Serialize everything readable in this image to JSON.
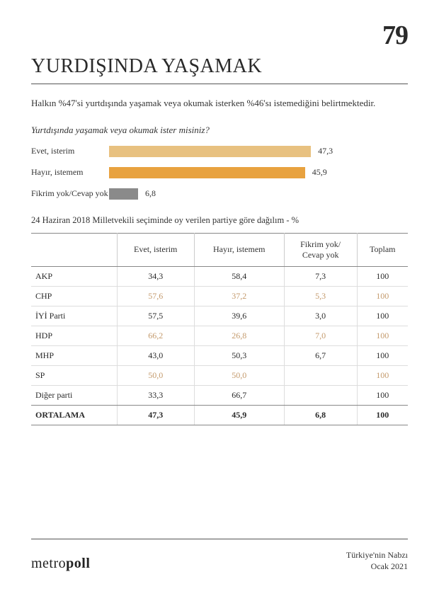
{
  "page_number": "79",
  "title": "YURDIŞINDA YAŞAMAK",
  "lede": "Halkın %47'si yurtdışında yaşamak veya okumak isterken %46'sı istemediğini belirtmektedir.",
  "chart": {
    "question": "Yurtdışında yaşamak veya okumak ister misiniz?",
    "max": 70,
    "bars": [
      {
        "label": "Evet, isterim",
        "value": "47,3",
        "pct": 47.3,
        "color": "#e8c180"
      },
      {
        "label": "Hayır, istemem",
        "value": "45,9",
        "pct": 45.9,
        "color": "#e8a23f"
      },
      {
        "label": "Fikrim yok/Cevap yok",
        "value": "6,8",
        "pct": 6.8,
        "color": "#8a8a8a"
      }
    ]
  },
  "table": {
    "caption": "24 Haziran 2018 Milletvekili seçiminde oy verilen partiye göre dağılım - %",
    "columns": [
      "",
      "Evet, isterim",
      "Hayır, istemem",
      "Fikrim yok/\nCevap yok",
      "Toplam"
    ],
    "rows": [
      {
        "cells": [
          "AKP",
          "34,3",
          "58,4",
          "7,3",
          "100"
        ],
        "muted": false
      },
      {
        "cells": [
          "CHP",
          "57,6",
          "37,2",
          "5,3",
          "100"
        ],
        "muted": true
      },
      {
        "cells": [
          "İYİ Parti",
          "57,5",
          "39,6",
          "3,0",
          "100"
        ],
        "muted": false
      },
      {
        "cells": [
          "HDP",
          "66,2",
          "26,8",
          "7,0",
          "100"
        ],
        "muted": true
      },
      {
        "cells": [
          "MHP",
          "43,0",
          "50,3",
          "6,7",
          "100"
        ],
        "muted": false
      },
      {
        "cells": [
          "SP",
          "50,0",
          "50,0",
          "",
          "100"
        ],
        "muted": true
      },
      {
        "cells": [
          "Diğer parti",
          "33,3",
          "66,7",
          "",
          "100"
        ],
        "muted": false
      }
    ],
    "average": {
      "label": "ORTALAMA",
      "cells": [
        "47,3",
        "45,9",
        "6,8",
        "100"
      ]
    }
  },
  "footer": {
    "brand_light": "metro",
    "brand_bold": "poll",
    "right_line1": "Türkiye'nin Nabzı",
    "right_line2": "Ocak 2021"
  }
}
